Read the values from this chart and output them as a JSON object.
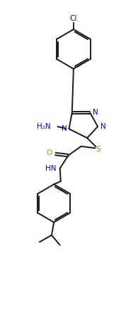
{
  "bg_color": "#ffffff",
  "line_color": "#1a1a1a",
  "n_color": "#0000cc",
  "s_color": "#b8860b",
  "o_color": "#b8860b",
  "line_width": 1.4,
  "font_size": 7.5,
  "fig_width": 1.95,
  "fig_height": 4.5,
  "dpi": 100,
  "xlim": [
    0,
    9
  ],
  "ylim": [
    0,
    21
  ]
}
